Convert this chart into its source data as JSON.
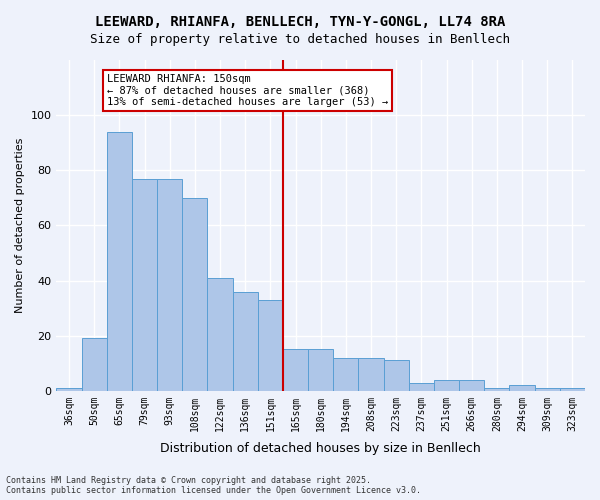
{
  "title_line1": "LEEWARD, RHIANFA, BENLLECH, TYN-Y-GONGL, LL74 8RA",
  "title_line2": "Size of property relative to detached houses in Benllech",
  "xlabel": "Distribution of detached houses by size in Benllech",
  "ylabel": "Number of detached properties",
  "categories": [
    "36sqm",
    "50sqm",
    "65sqm",
    "79sqm",
    "93sqm",
    "108sqm",
    "122sqm",
    "136sqm",
    "151sqm",
    "165sqm",
    "180sqm",
    "194sqm",
    "208sqm",
    "223sqm",
    "237sqm",
    "251sqm",
    "266sqm",
    "280sqm",
    "294sqm",
    "309sqm",
    "323sqm"
  ],
  "values": [
    1,
    19,
    94,
    77,
    77,
    70,
    41,
    36,
    33,
    15,
    15,
    12,
    12,
    11,
    3,
    4,
    4,
    1,
    2,
    1,
    1
  ],
  "bar_color": "#aec6e8",
  "bar_edge_color": "#5a9fd4",
  "background_color": "#eef2fb",
  "grid_color": "#ffffff",
  "vline_x": 8,
  "vline_color": "#cc0000",
  "annotation_title": "LEEWARD RHIANFA: 150sqm",
  "annotation_line1": "← 87% of detached houses are smaller (368)",
  "annotation_line2": "13% of semi-detached houses are larger (53) →",
  "annotation_box_color": "#ffffff",
  "annotation_box_edge": "#cc0000",
  "footer_line1": "Contains HM Land Registry data © Crown copyright and database right 2025.",
  "footer_line2": "Contains public sector information licensed under the Open Government Licence v3.0.",
  "ylim": [
    0,
    120
  ],
  "yticks": [
    0,
    20,
    40,
    60,
    80,
    100
  ]
}
